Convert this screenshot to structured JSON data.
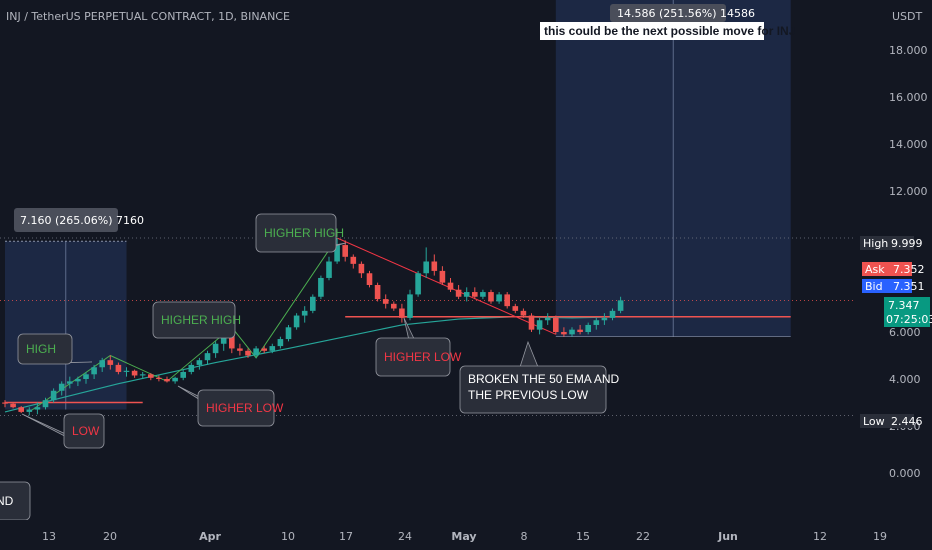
{
  "header": {
    "title": "INJ / TetherUS PERPETUAL CONTRACT, 1D, BINANCE",
    "currency": "USDT"
  },
  "price_scale": {
    "ticks": [
      "18.000",
      "16.000",
      "14.000",
      "12.000",
      "6.000",
      "4.000",
      "2.000",
      "0.000"
    ],
    "high_label": "High",
    "high_value": "9.999",
    "ask_label": "Ask",
    "ask_value": "7.352",
    "bid_label": "Bid",
    "bid_value": "7.351",
    "last_value": "7.347",
    "countdown": "07:25:03",
    "low_label": "Low",
    "low_value": "2.446"
  },
  "time_scale": {
    "ticks": [
      "13",
      "20",
      "Apr",
      "10",
      "17",
      "24",
      "May",
      "8",
      "15",
      "22",
      "Jun",
      "12",
      "19"
    ]
  },
  "measure_boxes": [
    {
      "label": "7.160 (265.06%) 7160"
    },
    {
      "label": "14.586 (251.56%) 14586"
    }
  ],
  "annotations": {
    "high": "HIGH",
    "low": "LOW",
    "higher_high_1": "HIGHER HIGH",
    "higher_low_1": "HIGHER LOW",
    "higher_high_2": "HIGHER HIGH",
    "higher_low_2": "HIGHER LOW",
    "broken_line1": "BROKEN  THE 50 EMA AND",
    "broken_line2": "THE PREVIOUS LOW",
    "partial_left": "AND",
    "next_move": "this could be the next possible move for INJ"
  },
  "colors": {
    "background": "#131722",
    "up": "#26a69a",
    "down": "#ef5350",
    "ema": "#26a69a",
    "trend_up": "#4caf50",
    "trend_down": "#f23645",
    "measure_fill": "#1e2c4a",
    "label_bg": "#2a2e39"
  },
  "chart_data": {
    "type": "candlestick",
    "title": "INJ / TetherUS PERPETUAL CONTRACT, 1D, BINANCE",
    "ylabel": "USDT",
    "ylim": [
      -1.5,
      21.5
    ],
    "yticks": [
      0,
      2,
      4,
      6,
      12,
      14,
      16,
      18
    ],
    "x_tick_labels": [
      "13",
      "20",
      "Apr",
      "10",
      "17",
      "24",
      "May",
      "8",
      "15",
      "22",
      "Jun",
      "12",
      "19"
    ],
    "x_start": "2023-03-06",
    "candles": [
      [
        "2023-03-06",
        3.0,
        3.1,
        2.8,
        2.95
      ],
      [
        "2023-03-07",
        2.95,
        3.0,
        2.75,
        2.8
      ],
      [
        "2023-03-08",
        2.8,
        2.85,
        2.55,
        2.6
      ],
      [
        "2023-03-09",
        2.6,
        2.8,
        2.45,
        2.7
      ],
      [
        "2023-03-10",
        2.7,
        3.0,
        2.5,
        2.8
      ],
      [
        "2023-03-11",
        2.8,
        3.2,
        2.7,
        3.1
      ],
      [
        "2023-03-12",
        3.1,
        3.6,
        3.0,
        3.5
      ],
      [
        "2023-03-13",
        3.5,
        3.9,
        3.3,
        3.8
      ],
      [
        "2023-03-14",
        3.8,
        4.1,
        3.6,
        3.9
      ],
      [
        "2023-03-15",
        3.9,
        4.1,
        3.7,
        4.0
      ],
      [
        "2023-03-16",
        4.0,
        4.3,
        3.8,
        4.2
      ],
      [
        "2023-03-17",
        4.2,
        4.6,
        4.0,
        4.5
      ],
      [
        "2023-03-18",
        4.5,
        4.9,
        4.3,
        4.8
      ],
      [
        "2023-03-19",
        4.8,
        5.0,
        4.4,
        4.6
      ],
      [
        "2023-03-20",
        4.6,
        4.7,
        4.2,
        4.3
      ],
      [
        "2023-03-21",
        4.3,
        4.5,
        4.1,
        4.35
      ],
      [
        "2023-03-22",
        4.35,
        4.4,
        4.05,
        4.15
      ],
      [
        "2023-03-23",
        4.15,
        4.3,
        4.0,
        4.2
      ],
      [
        "2023-03-24",
        4.2,
        4.25,
        3.95,
        4.05
      ],
      [
        "2023-03-25",
        4.05,
        4.15,
        3.9,
        4.0
      ],
      [
        "2023-03-26",
        4.0,
        4.1,
        3.85,
        3.9
      ],
      [
        "2023-03-27",
        3.9,
        4.1,
        3.8,
        4.05
      ],
      [
        "2023-03-28",
        4.05,
        4.4,
        3.95,
        4.3
      ],
      [
        "2023-03-29",
        4.3,
        4.7,
        4.2,
        4.6
      ],
      [
        "2023-03-30",
        4.6,
        4.9,
        4.4,
        4.8
      ],
      [
        "2023-03-31",
        4.8,
        5.2,
        4.6,
        5.1
      ],
      [
        "2023-04-01",
        5.1,
        5.6,
        4.9,
        5.5
      ],
      [
        "2023-04-02",
        5.5,
        6.0,
        5.2,
        5.9
      ],
      [
        "2023-04-03",
        5.9,
        6.2,
        5.1,
        5.3
      ],
      [
        "2023-04-04",
        5.3,
        5.5,
        5.0,
        5.2
      ],
      [
        "2023-04-05",
        5.2,
        5.3,
        4.9,
        5.0
      ],
      [
        "2023-04-06",
        5.0,
        5.4,
        4.9,
        5.3
      ],
      [
        "2023-04-07",
        5.3,
        5.4,
        5.1,
        5.2
      ],
      [
        "2023-04-08",
        5.2,
        5.5,
        5.1,
        5.4
      ],
      [
        "2023-04-09",
        5.4,
        5.8,
        5.3,
        5.7
      ],
      [
        "2023-04-10",
        5.7,
        6.3,
        5.6,
        6.2
      ],
      [
        "2023-04-11",
        6.2,
        6.8,
        6.1,
        6.7
      ],
      [
        "2023-04-12",
        6.7,
        7.1,
        6.4,
        6.9
      ],
      [
        "2023-04-13",
        6.9,
        7.6,
        6.8,
        7.5
      ],
      [
        "2023-04-14",
        7.5,
        8.4,
        7.4,
        8.3
      ],
      [
        "2023-04-15",
        8.3,
        9.2,
        8.2,
        9.0
      ],
      [
        "2023-04-16",
        9.0,
        10.0,
        8.9,
        9.7
      ],
      [
        "2023-04-17",
        9.7,
        9.9,
        9.0,
        9.2
      ],
      [
        "2023-04-18",
        9.2,
        9.3,
        8.7,
        8.9
      ],
      [
        "2023-04-19",
        8.9,
        9.0,
        8.3,
        8.5
      ],
      [
        "2023-04-20",
        8.5,
        8.6,
        7.9,
        8.0
      ],
      [
        "2023-04-21",
        8.0,
        8.1,
        7.3,
        7.4
      ],
      [
        "2023-04-22",
        7.4,
        7.6,
        7.0,
        7.2
      ],
      [
        "2023-04-23",
        7.2,
        7.3,
        6.9,
        7.0
      ],
      [
        "2023-04-24",
        7.0,
        7.2,
        6.4,
        6.6
      ],
      [
        "2023-04-25",
        6.6,
        7.8,
        6.5,
        7.6
      ],
      [
        "2023-04-26",
        7.6,
        8.6,
        7.5,
        8.5
      ],
      [
        "2023-04-27",
        8.5,
        9.6,
        8.3,
        9.0
      ],
      [
        "2023-04-28",
        9.0,
        9.3,
        8.4,
        8.6
      ],
      [
        "2023-04-29",
        8.6,
        8.8,
        8.0,
        8.1
      ],
      [
        "2023-04-30",
        8.1,
        8.3,
        7.7,
        7.8
      ],
      [
        "2023-05-01",
        7.8,
        8.0,
        7.4,
        7.5
      ],
      [
        "2023-05-02",
        7.5,
        7.9,
        7.3,
        7.7
      ],
      [
        "2023-05-03",
        7.7,
        7.9,
        7.4,
        7.5
      ],
      [
        "2023-05-04",
        7.5,
        7.8,
        7.4,
        7.7
      ],
      [
        "2023-05-05",
        7.7,
        7.8,
        7.2,
        7.3
      ],
      [
        "2023-05-06",
        7.3,
        7.7,
        7.2,
        7.6
      ],
      [
        "2023-05-07",
        7.6,
        7.7,
        7.0,
        7.1
      ],
      [
        "2023-05-08",
        7.1,
        7.2,
        6.8,
        6.9
      ],
      [
        "2023-05-09",
        6.9,
        7.0,
        6.6,
        6.7
      ],
      [
        "2023-05-10",
        6.7,
        6.8,
        6.0,
        6.1
      ],
      [
        "2023-05-11",
        6.1,
        6.6,
        5.9,
        6.5
      ],
      [
        "2023-05-12",
        6.5,
        6.8,
        6.3,
        6.6
      ],
      [
        "2023-05-13",
        6.6,
        6.7,
        5.9,
        6.0
      ],
      [
        "2023-05-14",
        6.0,
        6.2,
        5.8,
        5.9
      ],
      [
        "2023-05-15",
        5.9,
        6.2,
        5.8,
        6.1
      ],
      [
        "2023-05-16",
        6.1,
        6.3,
        5.9,
        6.0
      ],
      [
        "2023-05-17",
        6.0,
        6.4,
        5.9,
        6.3
      ],
      [
        "2023-05-18",
        6.3,
        6.6,
        6.1,
        6.5
      ],
      [
        "2023-05-19",
        6.5,
        6.8,
        6.3,
        6.6
      ],
      [
        "2023-05-20",
        6.6,
        7.0,
        6.5,
        6.9
      ],
      [
        "2023-05-21",
        6.9,
        7.5,
        6.8,
        7.347
      ]
    ],
    "ema50": [
      [
        "2023-03-06",
        2.6
      ],
      [
        "2023-03-20",
        3.8
      ],
      [
        "2023-04-01",
        4.7
      ],
      [
        "2023-04-10",
        5.3
      ],
      [
        "2023-04-17",
        5.8
      ],
      [
        "2023-04-24",
        6.3
      ],
      [
        "2023-05-01",
        6.55
      ],
      [
        "2023-05-08",
        6.65
      ],
      [
        "2023-05-15",
        6.6
      ],
      [
        "2023-05-21",
        6.65
      ]
    ],
    "levels": [
      {
        "from": "2023-03-06",
        "to": "2023-03-23",
        "price": 3.0
      },
      {
        "from": "2023-04-17",
        "to": "2023-06-11",
        "price": 6.65
      }
    ],
    "trend_lines": [
      {
        "type": "zigzag_up",
        "points": [
          [
            "2023-03-09",
            2.6
          ],
          [
            "2023-03-19",
            5.0
          ],
          [
            "2023-03-26",
            3.9
          ],
          [
            "2023-04-03",
            6.2
          ],
          [
            "2023-04-06",
            4.9
          ],
          [
            "2023-04-16",
            10.0
          ]
        ]
      },
      {
        "type": "down",
        "points": [
          [
            "2023-04-16",
            10.0
          ],
          [
            "2023-05-13",
            5.9
          ]
        ]
      }
    ],
    "measure_ranges": [
      {
        "from": "2023-03-06",
        "to": "2023-03-21",
        "low": 2.7,
        "high": 9.86,
        "pct": "265.06%"
      },
      {
        "from": "2023-05-13",
        "to": "2023-06-11",
        "low": 5.8,
        "high": 20.39,
        "pct": "251.56%"
      }
    ],
    "reference_lines": [
      {
        "price": 9.999,
        "label": "High"
      },
      {
        "price": 7.347,
        "label": "Last"
      },
      {
        "price": 2.446,
        "label": "Low"
      }
    ]
  }
}
